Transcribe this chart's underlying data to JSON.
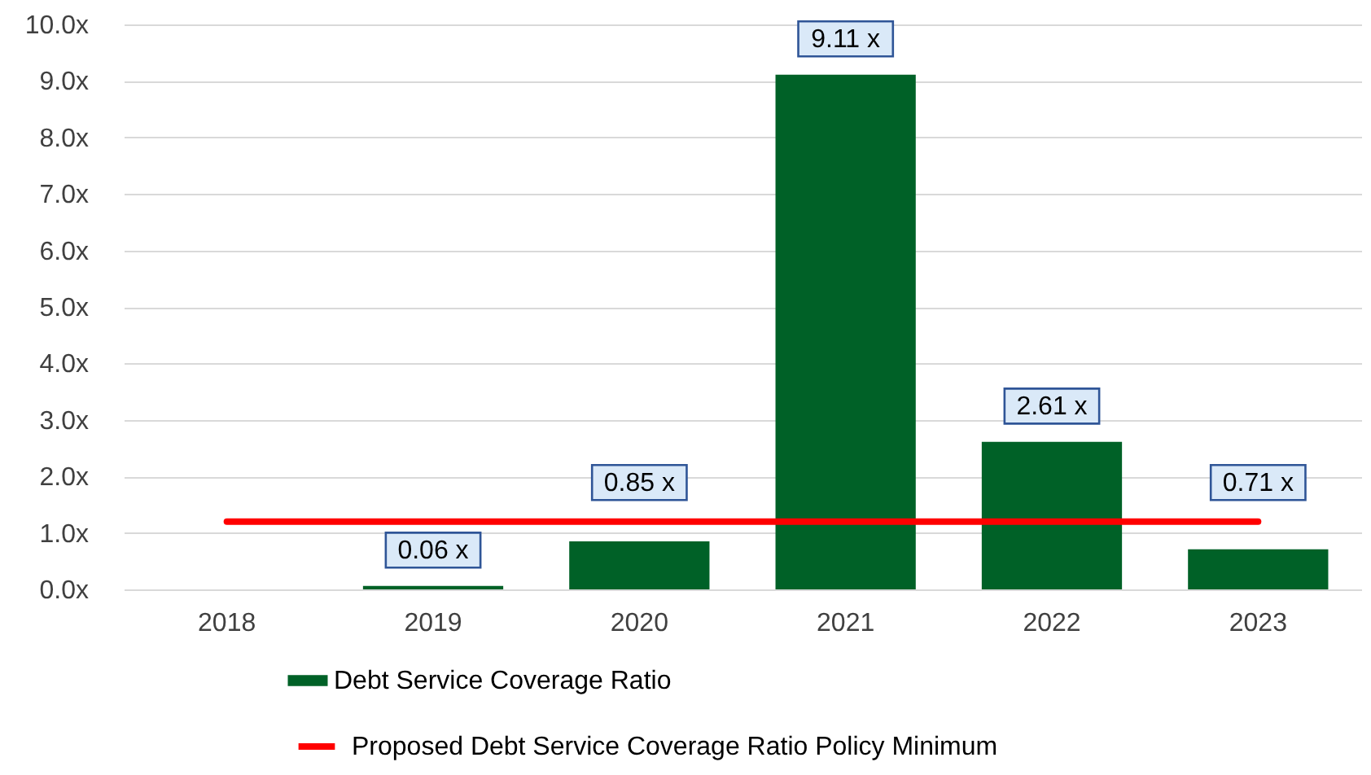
{
  "chart_data": {
    "type": "bar",
    "categories": [
      "2018",
      "2019",
      "2020",
      "2021",
      "2022",
      "2023"
    ],
    "series": [
      {
        "name": "Debt Service Coverage Ratio",
        "color": "#006127",
        "values": [
          null,
          0.06,
          0.85,
          9.11,
          2.61,
          0.71
        ],
        "value_labels": [
          null,
          "0.06 x",
          "0.85 x",
          "9.11 x",
          "2.61 x",
          "0.71 x"
        ]
      },
      {
        "name": "Proposed Debt Service Coverage Ratio Policy Minimum",
        "type": "line",
        "color": "#ff0000",
        "values": [
          1.2,
          1.2,
          1.2,
          1.2,
          1.2,
          1.2
        ]
      }
    ],
    "ylim": [
      0,
      10
    ],
    "yticks": [
      {
        "value": 0,
        "label": "0.0x"
      },
      {
        "value": 1,
        "label": "1.0x"
      },
      {
        "value": 2,
        "label": "2.0x"
      },
      {
        "value": 3,
        "label": "3.0x"
      },
      {
        "value": 4,
        "label": "4.0x"
      },
      {
        "value": 5,
        "label": "5.0x"
      },
      {
        "value": 6,
        "label": "6.0x"
      },
      {
        "value": 7,
        "label": "7.0x"
      },
      {
        "value": 8,
        "label": "8.0x"
      },
      {
        "value": 9,
        "label": "9.0x"
      },
      {
        "value": 10,
        "label": "10.0x"
      }
    ],
    "grid": "y",
    "legend": "bottom"
  }
}
